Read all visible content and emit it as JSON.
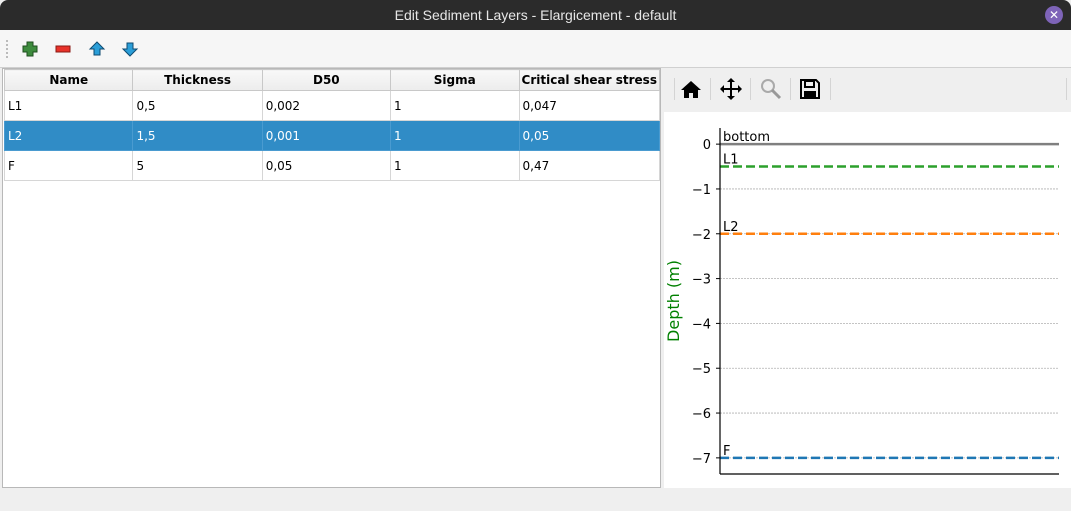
{
  "window": {
    "title": "Edit Sediment Layers - Elargicement - default",
    "close_icon": "close-icon"
  },
  "toolbar": {
    "buttons": [
      {
        "name": "add-layer",
        "icon": "plus-icon",
        "color": "#3d8b3d"
      },
      {
        "name": "remove-layer",
        "icon": "minus-icon",
        "color": "#e8322a"
      },
      {
        "name": "move-up",
        "icon": "arrow-up-icon",
        "color": "#2a9ed8"
      },
      {
        "name": "move-down",
        "icon": "arrow-down-icon",
        "color": "#2a9ed8"
      }
    ]
  },
  "table": {
    "columns": [
      "Name",
      "Thickness",
      "D50",
      "Sigma",
      "Critical shear stress"
    ],
    "rows": [
      [
        "L1",
        "0,5",
        "0,002",
        "1",
        "0,047"
      ],
      [
        "L2",
        "1,5",
        "0,001",
        "1",
        "0,05"
      ],
      [
        "F",
        "5",
        "0,05",
        "1",
        "0,47"
      ]
    ],
    "selected_row": 1,
    "selection_color": "#308cc6"
  },
  "plot_toolbar": {
    "buttons": [
      "home-icon",
      "pan-icon",
      "zoom-icon",
      "save-icon"
    ]
  },
  "chart_data": {
    "type": "line",
    "ylabel": "Depth (m)",
    "ylabel_color": "#008000",
    "ylim": [
      -7.36,
      0.36
    ],
    "yticks": [
      0,
      -1,
      -2,
      -3,
      -4,
      -5,
      -6,
      -7
    ],
    "ytick_labels": [
      "0",
      "−1",
      "−2",
      "−3",
      "−4",
      "−5",
      "−6",
      "−7"
    ],
    "grid": true,
    "lines": [
      {
        "label": "bottom",
        "y": 0,
        "color": "#808080",
        "style": "solid"
      },
      {
        "label": "L1",
        "y": -0.5,
        "color": "#2ca02c",
        "style": "dashed"
      },
      {
        "label": "L2",
        "y": -2,
        "color": "#ff7f0e",
        "style": "dashed"
      },
      {
        "label": "F",
        "y": -7,
        "color": "#1f77b4",
        "style": "dashed"
      }
    ]
  }
}
